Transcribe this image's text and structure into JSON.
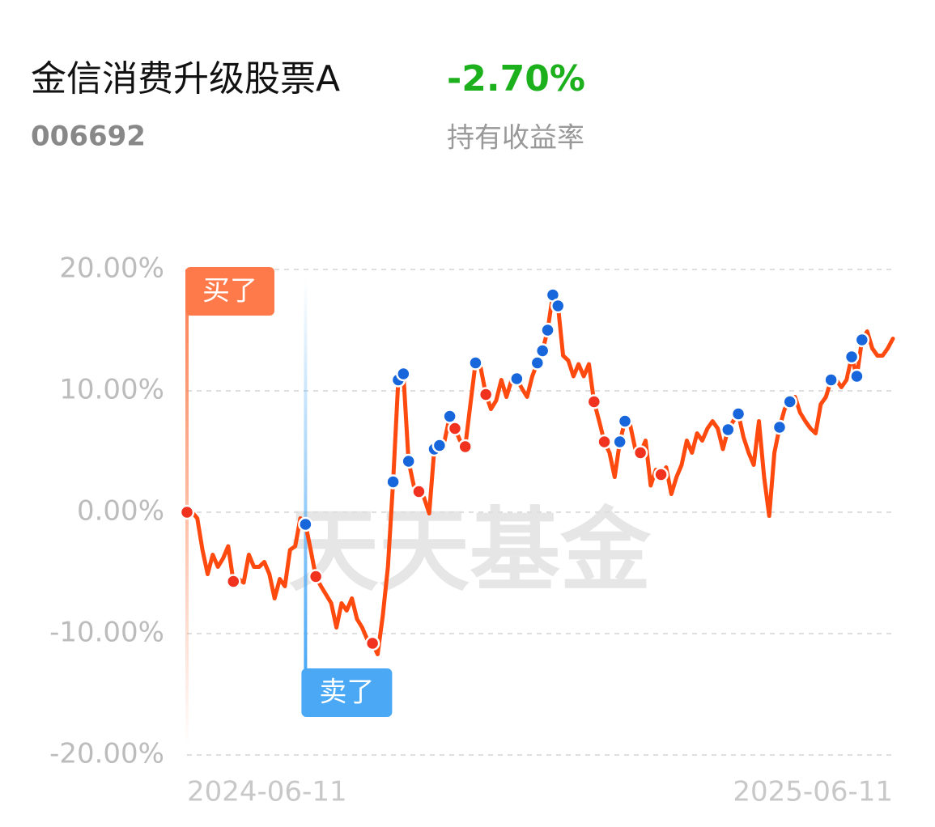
{
  "header": {
    "title": "金信消费升级股票A",
    "return": "-2.70%",
    "code": "006692",
    "return_label": "持有收益率"
  },
  "chart_data": {
    "type": "line",
    "watermark": "天天基金",
    "categories": [
      "2024-06-11",
      null,
      null,
      null,
      null,
      null,
      null,
      null,
      null,
      null,
      null,
      null,
      null,
      null,
      null,
      null,
      null,
      null,
      null,
      null,
      null,
      null,
      null,
      null,
      null,
      null,
      null,
      null,
      null,
      null,
      null,
      null,
      null,
      null,
      null,
      null,
      null,
      null,
      null,
      null,
      null,
      null,
      null,
      null,
      null,
      null,
      null,
      null,
      null,
      null,
      null,
      null,
      null,
      null,
      null,
      null,
      null,
      null,
      null,
      null,
      null,
      null,
      null,
      null,
      null,
      null,
      null,
      null,
      null,
      null,
      null,
      null,
      null,
      null,
      null,
      null,
      null,
      null,
      null,
      null,
      null,
      null,
      null,
      null,
      null,
      null,
      null,
      null,
      null,
      null,
      null,
      null,
      null,
      null,
      null,
      null,
      null,
      null,
      null,
      null,
      null,
      null,
      null,
      null,
      null,
      null,
      null,
      null,
      null,
      null,
      null,
      null,
      null,
      null,
      null,
      null,
      null,
      null,
      null,
      null,
      null,
      null,
      null,
      null,
      null,
      null,
      null,
      null,
      null,
      null,
      null,
      null,
      null,
      null,
      null,
      null,
      null,
      "2025-06-11"
    ],
    "values": [
      0,
      0,
      -0.5,
      -3.1,
      -5.1,
      -3.5,
      -4.5,
      -3.8,
      -2.8,
      -5.7,
      -5.5,
      -5.8,
      -3.5,
      -4.5,
      -4.5,
      -4.1,
      -5.1,
      -7.1,
      -5.5,
      -6.1,
      -3.1,
      -2.8,
      -0.5,
      -1.0,
      -3.1,
      -5.3,
      -6.1,
      -6.8,
      -7.5,
      -9.5,
      -7.5,
      -8.1,
      -7.1,
      -8.8,
      -9.5,
      -10.5,
      -10.8,
      -11.7,
      -8.5,
      -4.5,
      2.5,
      10.9,
      11.4,
      4.2,
      2.2,
      1.7,
      1.2,
      -0.1,
      5.2,
      5.5,
      5.9,
      7.9,
      6.9,
      5.9,
      5.4,
      8.9,
      12.3,
      11.9,
      9.7,
      8.5,
      9.2,
      10.9,
      9.5,
      10.9,
      11.0,
      10.2,
      9.5,
      11.2,
      12.3,
      13.3,
      15.0,
      17.9,
      17.0,
      12.9,
      12.5,
      11.2,
      12.2,
      11.2,
      12.2,
      9.1,
      7.5,
      5.8,
      4.9,
      2.9,
      5.8,
      7.5,
      7.2,
      5.2,
      4.9,
      5.9,
      2.2,
      3.5,
      3.1,
      3.7,
      1.5,
      2.9,
      3.9,
      5.9,
      4.9,
      6.5,
      5.9,
      6.9,
      7.5,
      6.9,
      5.2,
      6.8,
      7.5,
      8.1,
      6.2,
      4.9,
      3.9,
      7.5,
      2.9,
      -0.3,
      4.9,
      7.0,
      8.5,
      9.1,
      9.5,
      8.2,
      7.5,
      6.9,
      6.5,
      8.9,
      9.5,
      10.9,
      10.9,
      10.3,
      10.9,
      12.8,
      11.2,
      14.2,
      14.9,
      13.5,
      12.9,
      12.9,
      13.5,
      14.3
    ],
    "color": "#ff4a0f",
    "buy_points": [
      0,
      9,
      25,
      36,
      45,
      52,
      54,
      58,
      79,
      81,
      88,
      92
    ],
    "buy_color": "#f0321e",
    "sell_points": [
      23,
      40,
      41,
      42,
      43,
      48,
      49,
      51,
      56,
      64,
      68,
      69,
      70,
      71,
      72,
      84,
      85,
      105,
      107,
      115,
      117,
      125,
      129,
      130,
      131
    ],
    "sell_color": "#1766db",
    "annotations": [
      {
        "text": "买了",
        "index": 0,
        "color": "#ff7a4a"
      },
      {
        "text": "卖了",
        "index": 23,
        "color": "#4aa8f5"
      }
    ],
    "ylim": [
      -20,
      20
    ],
    "yticks": [
      {
        "value": -20,
        "label": "-20.00%"
      },
      {
        "value": -10,
        "label": "-10.00%"
      },
      {
        "value": 0,
        "label": "0.00%"
      },
      {
        "value": 10,
        "label": "10.00%"
      },
      {
        "value": 20,
        "label": "20.00%"
      }
    ],
    "grid": true
  }
}
